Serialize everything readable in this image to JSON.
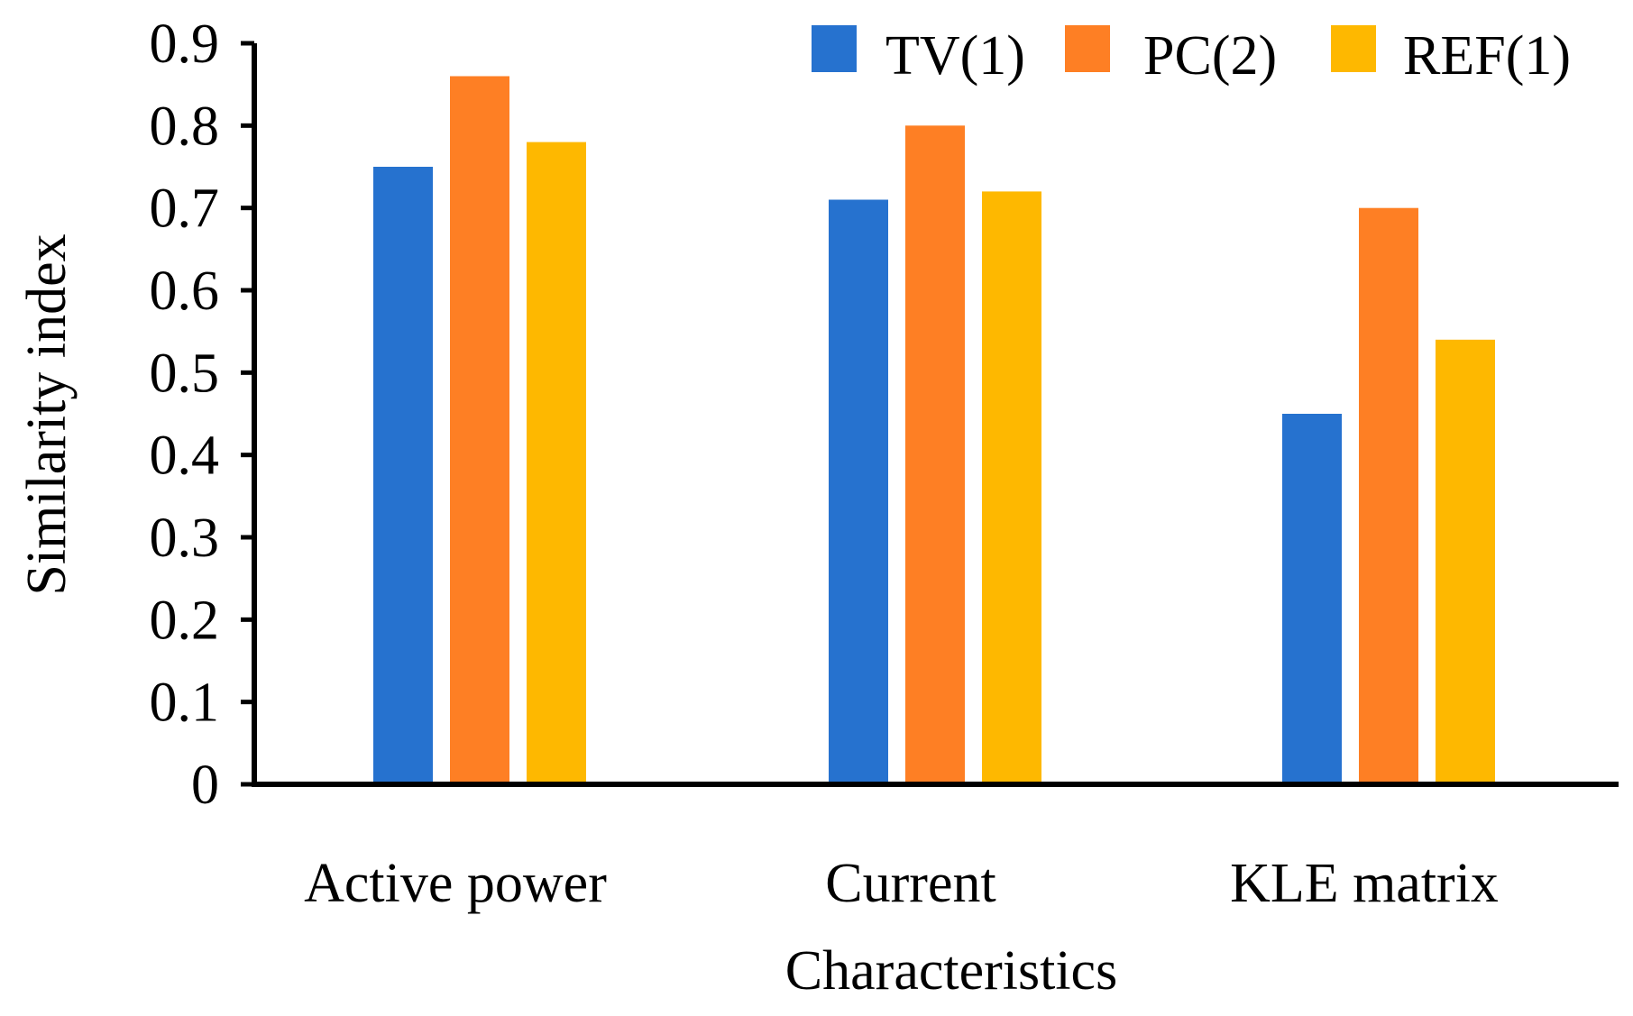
{
  "chart_data": {
    "type": "bar",
    "title": "",
    "xlabel": "Characteristics",
    "ylabel": "Similarity index",
    "categories": [
      "Active power",
      "Current",
      "KLE matrix"
    ],
    "series": [
      {
        "name": "TV(1)",
        "color": "#2672CF",
        "values": [
          0.75,
          0.71,
          0.45
        ]
      },
      {
        "name": "PC(2)",
        "color": "#FE7F24",
        "values": [
          0.86,
          0.8,
          0.7
        ]
      },
      {
        "name": "REF(1)",
        "color": "#FEB800",
        "values": [
          0.78,
          0.72,
          0.54
        ]
      }
    ],
    "ylim": [
      0,
      0.9
    ],
    "yticks": [
      0,
      0.1,
      0.2,
      0.3,
      0.4,
      0.5,
      0.6,
      0.7,
      0.8,
      0.9
    ],
    "ytick_labels": [
      "0",
      "0.1",
      "0.2",
      "0.3",
      "0.4",
      "0.5",
      "0.6",
      "0.7",
      "0.8",
      "0.9"
    ],
    "grid": false,
    "legend_position": "top-right"
  }
}
